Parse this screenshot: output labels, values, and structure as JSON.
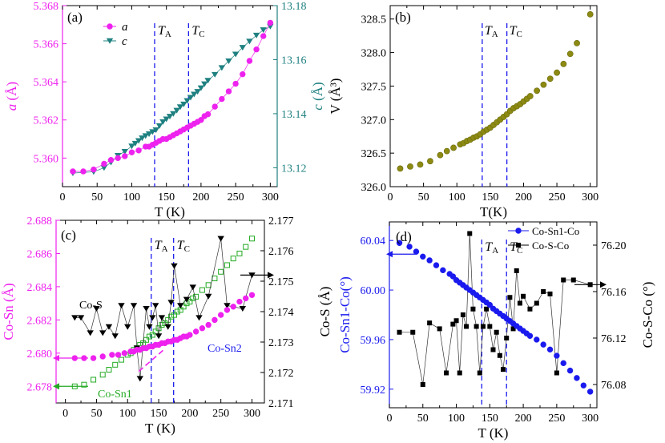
{
  "colors": {
    "magenta": "#ee22ee",
    "teal": "#1f8080",
    "olive": "#8c8a12",
    "green": "#22aa22",
    "blue": "#1a1aee",
    "black": "#000000",
    "dashed": "#1a1aee"
  },
  "chart_data": [
    {
      "panel_label": "(a)",
      "type": "scatter",
      "xlabel": "T (K)",
      "xlim": [
        0,
        310
      ],
      "xticks": [
        0,
        50,
        100,
        150,
        200,
        250,
        300
      ],
      "xtick_labels": [
        "0",
        "50",
        "100",
        "150",
        "200",
        "250",
        "300"
      ],
      "ylabel_left": "a (Å)",
      "ylim_left": [
        5.3585,
        5.368
      ],
      "yticks_left": [
        5.36,
        5.362,
        5.364,
        5.366,
        5.368
      ],
      "ytick_labels_left": [
        "5.360",
        "5.362",
        "5.364",
        "5.366",
        "5.368"
      ],
      "ylabel_right": "c (Å)",
      "ylim_right": [
        13.113,
        13.18
      ],
      "yticks_right": [
        13.12,
        13.14,
        13.16,
        13.18
      ],
      "ytick_labels_right": [
        "13.12",
        "13.14",
        "13.16",
        "13.18"
      ],
      "vlines": [
        {
          "x": 133,
          "label": "TA"
        },
        {
          "x": 182,
          "label": "TC"
        }
      ],
      "vline_labels": [
        "T",
        "A",
        "T",
        "C"
      ],
      "legend": [
        "a",
        "c"
      ],
      "series": [
        {
          "name": "a",
          "axis": "left",
          "marker": "circle",
          "x": [
            15,
            30,
            45,
            60,
            70,
            80,
            90,
            100,
            110,
            120,
            125,
            130,
            135,
            140,
            145,
            150,
            155,
            160,
            165,
            170,
            175,
            180,
            185,
            190,
            195,
            200,
            205,
            210,
            220,
            230,
            240,
            250,
            260,
            270,
            280,
            290,
            300
          ],
          "values": [
            5.3593,
            5.3593,
            5.3594,
            5.3597,
            5.3599,
            5.36,
            5.3601,
            5.3603,
            5.3604,
            5.3606,
            5.3606,
            5.3607,
            5.3608,
            5.3609,
            5.361,
            5.361,
            5.3611,
            5.3612,
            5.3613,
            5.3614,
            5.3615,
            5.3616,
            5.3617,
            5.3618,
            5.3619,
            5.362,
            5.3622,
            5.3623,
            5.3627,
            5.3631,
            5.3635,
            5.3639,
            5.3644,
            5.3651,
            5.3657,
            5.3664,
            5.3671
          ]
        },
        {
          "name": "c",
          "axis": "right",
          "marker": "triangle-down",
          "x": [
            15,
            45,
            60,
            70,
            80,
            90,
            100,
            105,
            110,
            115,
            120,
            125,
            130,
            135,
            140,
            145,
            150,
            155,
            160,
            165,
            170,
            175,
            180,
            185,
            190,
            195,
            200,
            205,
            210,
            220,
            230,
            240,
            250,
            260,
            270,
            280,
            290,
            300
          ],
          "values": [
            13.118,
            13.1185,
            13.12,
            13.122,
            13.1245,
            13.126,
            13.128,
            13.129,
            13.13,
            13.131,
            13.1318,
            13.1325,
            13.1333,
            13.134,
            13.1355,
            13.137,
            13.138,
            13.139,
            13.14,
            13.1412,
            13.1425,
            13.1435,
            13.1448,
            13.146,
            13.1472,
            13.1482,
            13.1495,
            13.151,
            13.1523,
            13.1545,
            13.157,
            13.1595,
            13.162,
            13.1645,
            13.1668,
            13.169,
            13.171,
            13.1723
          ]
        }
      ]
    },
    {
      "panel_label": "(b)",
      "type": "scatter",
      "xlabel": "T(K)",
      "xlim": [
        0,
        310
      ],
      "xticks": [
        0,
        50,
        100,
        150,
        200,
        250,
        300
      ],
      "xtick_labels": [
        "0",
        "50",
        "100",
        "150",
        "200",
        "250",
        "300"
      ],
      "ylabel": "V (Å³)",
      "ylim": [
        326.0,
        328.7
      ],
      "yticks": [
        326.0,
        326.5,
        327.0,
        327.5,
        328.0,
        328.5
      ],
      "ytick_labels": [
        "326.0",
        "326.5",
        "327.0",
        "327.5",
        "328.0",
        "328.5"
      ],
      "vlines": [
        {
          "x": 138,
          "label": "TA"
        },
        {
          "x": 175,
          "label": "TC"
        }
      ],
      "vline_labels": [
        "T",
        "A",
        "T",
        "C"
      ],
      "series": [
        {
          "name": "V",
          "marker": "circle",
          "x": [
            15,
            30,
            45,
            60,
            75,
            85,
            95,
            105,
            110,
            115,
            120,
            125,
            130,
            135,
            140,
            145,
            150,
            155,
            160,
            165,
            170,
            175,
            180,
            185,
            190,
            195,
            200,
            205,
            210,
            220,
            230,
            240,
            250,
            260,
            270,
            280,
            300
          ],
          "values": [
            326.27,
            326.3,
            326.33,
            326.38,
            326.47,
            326.53,
            326.58,
            326.63,
            326.65,
            326.68,
            326.7,
            326.73,
            326.75,
            326.78,
            326.82,
            326.85,
            326.88,
            326.92,
            326.96,
            327.0,
            327.04,
            327.08,
            327.13,
            327.17,
            327.2,
            327.23,
            327.27,
            327.31,
            327.35,
            327.43,
            327.52,
            327.61,
            327.7,
            327.83,
            327.98,
            328.14,
            328.57
          ]
        }
      ]
    },
    {
      "panel_label": "(c)",
      "type": "scatter",
      "xlabel": "T (K)",
      "xlim": [
        -15,
        320
      ],
      "xticks": [
        0,
        50,
        100,
        150,
        200,
        250,
        300
      ],
      "xtick_labels": [
        "0",
        "50",
        "100",
        "150",
        "200",
        "250",
        "300"
      ],
      "ylabel_left": "Co-Sn (Å)",
      "ylim_left": [
        2.677,
        2.688
      ],
      "yticks_left": [
        2.678,
        2.68,
        2.682,
        2.684,
        2.686,
        2.688
      ],
      "ytick_labels_left": [
        "2.678",
        "2.680",
        "2.682",
        "2.684",
        "2.686",
        "2.688"
      ],
      "ylabel_right": "Co-S (Å)",
      "ylim_right": [
        2.171,
        2.177
      ],
      "yticks_right": [
        2.171,
        2.172,
        2.173,
        2.174,
        2.175,
        2.176,
        2.177
      ],
      "ytick_labels_right": [
        "2.171",
        "2.172",
        "2.173",
        "2.174",
        "2.175",
        "2.176",
        "2.177"
      ],
      "vlines": [
        {
          "x": 138,
          "label": "TA"
        },
        {
          "x": 174,
          "label": "TC"
        }
      ],
      "vline_labels": [
        "T",
        "A",
        "T",
        "C"
      ],
      "annotations": [
        "Co-S",
        "Co-Sn1",
        "Co-Sn2"
      ],
      "series": [
        {
          "name": "Co-Sn2",
          "axis": "left",
          "marker": "circle",
          "x": [
            15,
            30,
            45,
            60,
            75,
            85,
            95,
            105,
            110,
            115,
            120,
            125,
            130,
            135,
            140,
            145,
            150,
            155,
            160,
            165,
            170,
            175,
            180,
            185,
            190,
            195,
            200,
            210,
            220,
            230,
            240,
            250,
            260,
            270,
            280,
            290,
            300
          ],
          "values": [
            2.6797,
            2.6797,
            2.6797,
            2.6798,
            2.6799,
            2.6799,
            2.68,
            2.6801,
            2.6801,
            2.6802,
            2.6802,
            2.6803,
            2.6803,
            2.6804,
            2.6804,
            2.6805,
            2.6805,
            2.6806,
            2.6806,
            2.6807,
            2.6807,
            2.6808,
            2.6808,
            2.6809,
            2.681,
            2.681,
            2.6811,
            2.6813,
            2.6815,
            2.6817,
            2.682,
            2.6823,
            2.6826,
            2.6828,
            2.6831,
            2.6833,
            2.6835
          ]
        },
        {
          "name": "Co-Sn1",
          "axis": "left",
          "marker": "square-open",
          "x": [
            15,
            30,
            45,
            60,
            70,
            80,
            90,
            100,
            105,
            110,
            115,
            120,
            125,
            130,
            135,
            140,
            145,
            150,
            155,
            160,
            165,
            170,
            175,
            180,
            185,
            190,
            195,
            200,
            205,
            210,
            220,
            230,
            240,
            250,
            260,
            270,
            280,
            290,
            300
          ],
          "values": [
            2.678,
            2.6781,
            2.6784,
            2.6787,
            2.679,
            2.6793,
            2.6796,
            2.6799,
            2.68,
            2.6802,
            2.6803,
            2.6805,
            2.6806,
            2.6808,
            2.681,
            2.6811,
            2.6813,
            2.6815,
            2.6817,
            2.6818,
            2.682,
            2.6822,
            2.6823,
            2.6825,
            2.6826,
            2.6828,
            2.683,
            2.6831,
            2.6833,
            2.6834,
            2.6838,
            2.6841,
            2.6845,
            2.6849,
            2.6853,
            2.6857,
            2.686,
            2.6864,
            2.6869
          ]
        },
        {
          "name": "Co-S",
          "axis": "right",
          "marker": "triangle-down",
          "x": [
            15,
            25,
            40,
            50,
            60,
            70,
            80,
            90,
            100,
            110,
            115,
            120,
            130,
            135,
            140,
            145,
            150,
            155,
            165,
            170,
            175,
            185,
            195,
            205,
            215,
            230,
            250,
            260,
            285,
            300
          ],
          "values": [
            2.1738,
            2.1738,
            2.1733,
            2.1741,
            2.1733,
            2.1735,
            2.1732,
            2.1742,
            2.1735,
            2.1742,
            2.1728,
            2.1718,
            2.1741,
            2.1735,
            2.1738,
            2.1742,
            2.1732,
            2.1738,
            2.1735,
            2.1743,
            2.1755,
            2.1742,
            2.1744,
            2.1748,
            2.1738,
            2.1745,
            2.1764,
            2.1742,
            2.1741,
            2.1752
          ]
        }
      ]
    },
    {
      "panel_label": "(d)",
      "type": "scatter",
      "xlabel": "T (K)",
      "xlim": [
        0,
        310
      ],
      "xticks": [
        0,
        50,
        100,
        150,
        200,
        250,
        300
      ],
      "xtick_labels": [
        "0",
        "50",
        "100",
        "150",
        "200",
        "250",
        "300"
      ],
      "ylabel_left": "Co-Sn1-Co(°)",
      "ylim_left": [
        59.905,
        60.055
      ],
      "yticks_left": [
        59.92,
        59.96,
        60.0,
        60.04
      ],
      "ytick_labels_left": [
        "59.92",
        "59.96",
        "60.00",
        "60.04"
      ],
      "ylabel_right": "Co-S-Co (°)",
      "ylim_right": [
        76.06,
        76.22
      ],
      "yticks_right": [
        76.08,
        76.12,
        76.16,
        76.2
      ],
      "ytick_labels_right": [
        "76.08",
        "76.12",
        "76.16",
        "76.20"
      ],
      "vlines": [
        {
          "x": 138,
          "label": "TA"
        },
        {
          "x": 175,
          "label": "TC"
        }
      ],
      "vline_labels": [
        "T",
        "A",
        "T",
        "C"
      ],
      "legend": [
        "Co-Sn1-Co",
        "Co-S-Co"
      ],
      "series": [
        {
          "name": "Co-Sn1-Co",
          "axis": "left",
          "marker": "circle",
          "x": [
            15,
            30,
            40,
            50,
            60,
            70,
            80,
            90,
            95,
            100,
            105,
            110,
            115,
            120,
            125,
            130,
            135,
            140,
            145,
            150,
            155,
            160,
            165,
            170,
            175,
            180,
            185,
            190,
            195,
            200,
            205,
            210,
            220,
            230,
            240,
            250,
            260,
            270,
            280,
            290,
            300
          ],
          "values": [
            60.038,
            60.035,
            60.031,
            60.027,
            60.024,
            60.02,
            60.016,
            60.013,
            60.011,
            60.008,
            60.006,
            60.004,
            60.002,
            60.0,
            59.998,
            59.996,
            59.994,
            59.992,
            59.99,
            59.988,
            59.985,
            59.983,
            59.981,
            59.979,
            59.977,
            59.975,
            59.973,
            59.971,
            59.969,
            59.967,
            59.965,
            59.963,
            59.96,
            59.956,
            59.952,
            59.947,
            59.941,
            59.935,
            59.929,
            59.923,
            59.918
          ]
        },
        {
          "name": "Co-S-Co",
          "axis": "right",
          "marker": "square",
          "x": [
            15,
            35,
            50,
            60,
            75,
            85,
            95,
            100,
            105,
            110,
            115,
            120,
            125,
            130,
            135,
            140,
            145,
            150,
            155,
            160,
            165,
            170,
            175,
            180,
            185,
            190,
            195,
            200,
            210,
            220,
            230,
            240,
            250,
            260,
            275,
            300
          ],
          "values": [
            76.125,
            76.125,
            76.08,
            76.133,
            76.128,
            76.09,
            76.132,
            76.135,
            76.09,
            76.14,
            76.13,
            76.21,
            76.145,
            76.13,
            76.09,
            76.13,
            76.145,
            76.13,
            76.11,
            76.125,
            76.105,
            76.093,
            76.12,
            76.155,
            76.128,
            76.178,
            76.15,
            76.156,
            76.145,
            76.15,
            76.16,
            76.158,
            76.09,
            76.17,
            76.17,
            76.166
          ]
        }
      ]
    }
  ]
}
